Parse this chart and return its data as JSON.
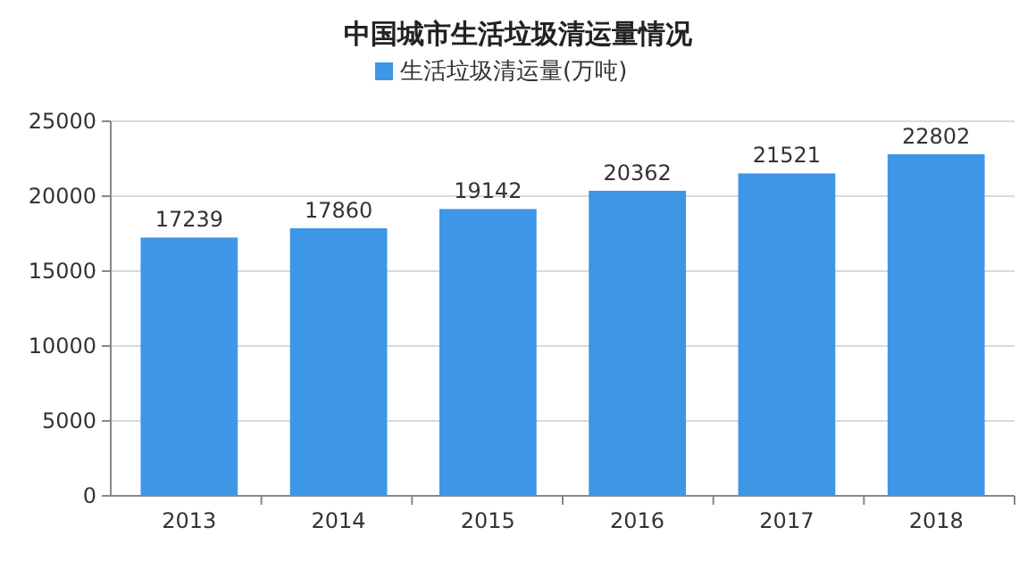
{
  "chart_data": {
    "type": "bar",
    "title": "中国城市生活垃圾清运量情况",
    "categories": [
      "2013",
      "2014",
      "2015",
      "2016",
      "2017",
      "2018"
    ],
    "series": [
      {
        "name": "生活垃圾清运量(万吨)",
        "color": "#3d96e6",
        "values": [
          17239,
          17860,
          19142,
          20362,
          21521,
          22802
        ]
      }
    ],
    "ylim": [
      0,
      25000
    ],
    "yticks": [
      0,
      5000,
      10000,
      15000,
      20000,
      25000
    ],
    "grid": "y",
    "legend": "top",
    "data_labels": true
  }
}
